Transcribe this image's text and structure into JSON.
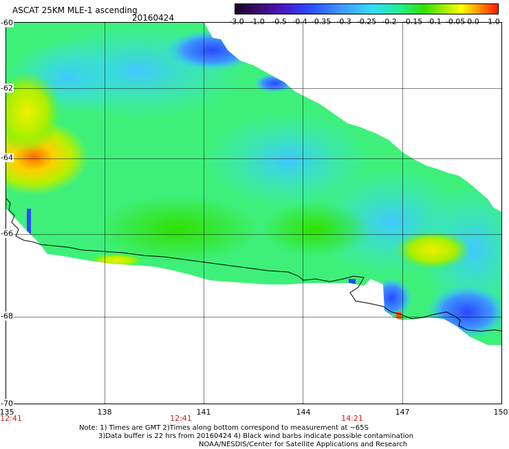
{
  "header": {
    "title": "ASCAT 25KM MLE-1 ascending",
    "date": "20160424"
  },
  "colorbar": {
    "ticks": [
      "-3.0",
      "-1.0",
      "-0.5",
      "-0.4",
      "-0.35",
      "-0.3",
      "-0.25",
      "-0.2",
      "-0.15",
      "-0.1",
      "-0.05",
      "0.0",
      "1.0"
    ],
    "colors": [
      "#1a0326",
      "#4b14b8",
      "#2a48ff",
      "#3f96ff",
      "#33dcff",
      "#20f080",
      "#32e000",
      "#a8f000",
      "#ffff00",
      "#ff5a00",
      "#ff1a00"
    ]
  },
  "map": {
    "lat_labels": [
      "-60",
      "-62",
      "-64",
      "-66",
      "-68",
      "-70"
    ],
    "lon_labels": [
      "135",
      "138",
      "141",
      "144",
      "147",
      "150"
    ],
    "time_labels": [
      "12:41",
      "12:41",
      "14:21"
    ]
  },
  "footer": {
    "note_line1": "Note: 1) Times are GMT 2)Times along bottom correspond to measurement at ~65S",
    "note_line2": "3)Data buffer is 22 hrs from 20160424 4) Black wind barbs indicate possible contamination",
    "note_line3": "NOAA/NESDIS/Center for Satellite Applications and Research"
  }
}
